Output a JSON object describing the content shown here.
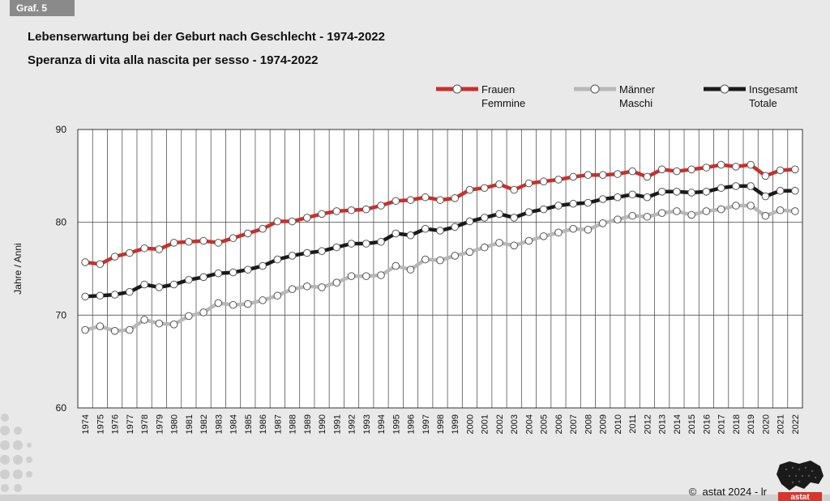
{
  "badge": "Graf. 5",
  "titles": {
    "de": "Lebenserwartung bei der Geburt nach Geschlecht - 1974-2022",
    "it": "Speranza di vita alla nascita per sesso - 1974-2022"
  },
  "colors": {
    "frauen": "#c9302c",
    "maenner": "#b8b8b8",
    "insgesamt": "#1a1a1a",
    "accent": "#d9342b"
  },
  "legend": [
    {
      "line1": "Frauen",
      "line2": "Femmine",
      "color": "#c9302c"
    },
    {
      "line1": "Männer",
      "line2": "Maschi",
      "color": "#b8b8b8"
    },
    {
      "line1": "Insgesamt",
      "line2": "Totale",
      "color": "#1a1a1a"
    }
  ],
  "footer": {
    "copyright": "astat 2024 - lr",
    "logo_text": "astat"
  },
  "chart_data": {
    "type": "line",
    "ylabel": "Jahre / Anni",
    "ylim": [
      60,
      90
    ],
    "yticks": [
      60,
      70,
      80,
      90
    ],
    "grid": true,
    "legend_position": "top-right",
    "categories": [
      "1974",
      "1975",
      "1976",
      "1977",
      "1978",
      "1979",
      "1980",
      "1981",
      "1982",
      "1983",
      "1984",
      "1985",
      "1986",
      "1987",
      "1988",
      "1989",
      "1990",
      "1991",
      "1992",
      "1993",
      "1994",
      "1995",
      "1996",
      "1997",
      "1998",
      "1999",
      "2000",
      "2001",
      "2002",
      "2003",
      "2004",
      "2005",
      "2006",
      "2007",
      "2008",
      "2009",
      "2010",
      "2011",
      "2012",
      "2013",
      "2014",
      "2015",
      "2016",
      "2017",
      "2018",
      "2019",
      "2020",
      "2021",
      "2022"
    ],
    "series": [
      {
        "name": "Frauen / Femmine",
        "color": "#c9302c",
        "values": [
          75.7,
          75.5,
          76.3,
          76.7,
          77.2,
          77.1,
          77.8,
          77.9,
          78.0,
          77.8,
          78.3,
          78.8,
          79.3,
          80.1,
          80.1,
          80.5,
          80.9,
          81.2,
          81.3,
          81.4,
          81.8,
          82.3,
          82.4,
          82.7,
          82.4,
          82.6,
          83.5,
          83.7,
          84.1,
          83.5,
          84.2,
          84.4,
          84.6,
          84.9,
          85.1,
          85.1,
          85.2,
          85.5,
          84.9,
          85.7,
          85.5,
          85.7,
          85.9,
          86.2,
          86.0,
          86.2,
          85.0,
          85.6,
          85.7
        ]
      },
      {
        "name": "Männer / Maschi",
        "color": "#b8b8b8",
        "values": [
          68.4,
          68.8,
          68.3,
          68.4,
          69.5,
          69.1,
          69.0,
          69.9,
          70.3,
          71.3,
          71.1,
          71.2,
          71.6,
          72.1,
          72.8,
          73.1,
          73.0,
          73.5,
          74.2,
          74.2,
          74.3,
          75.3,
          74.9,
          76.0,
          75.9,
          76.4,
          76.8,
          77.3,
          77.8,
          77.5,
          78.0,
          78.5,
          78.9,
          79.3,
          79.2,
          79.9,
          80.3,
          80.7,
          80.6,
          81.0,
          81.2,
          80.8,
          81.2,
          81.4,
          81.8,
          81.8,
          80.7,
          81.3,
          81.2
        ]
      },
      {
        "name": "Insgesamt / Totale",
        "color": "#1a1a1a",
        "values": [
          72.0,
          72.1,
          72.2,
          72.5,
          73.3,
          73.0,
          73.3,
          73.8,
          74.1,
          74.5,
          74.6,
          74.9,
          75.3,
          76.0,
          76.4,
          76.7,
          76.9,
          77.3,
          77.7,
          77.7,
          77.9,
          78.8,
          78.6,
          79.3,
          79.1,
          79.5,
          80.1,
          80.5,
          80.9,
          80.5,
          81.1,
          81.4,
          81.8,
          82.0,
          82.1,
          82.5,
          82.7,
          83.0,
          82.7,
          83.3,
          83.3,
          83.2,
          83.3,
          83.7,
          83.9,
          83.9,
          82.8,
          83.4,
          83.4
        ]
      }
    ]
  }
}
